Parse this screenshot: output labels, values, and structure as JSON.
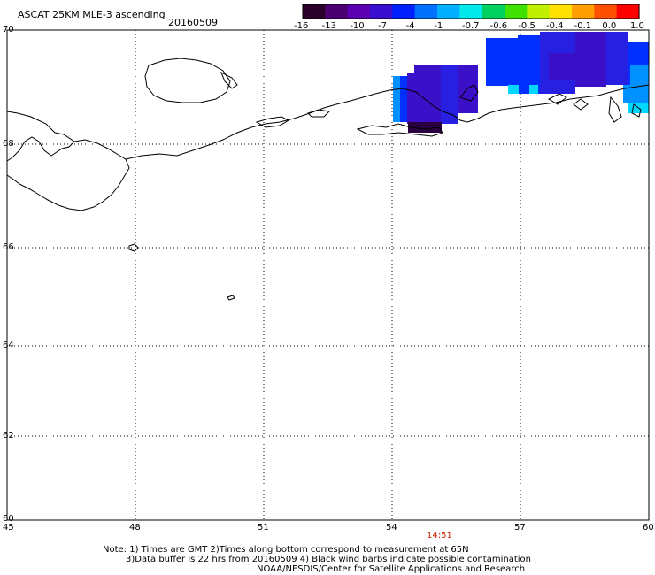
{
  "header": {
    "title": "ASCAT 25KM MLE-3 ascending",
    "date": "20160509"
  },
  "colorbar": {
    "labels": [
      "-16",
      "-13",
      "-10",
      "-7",
      "-4",
      "-1",
      "-0.7",
      "-0.6",
      "-0.5",
      "-0.4",
      "-0.1",
      "0.0",
      "1.0"
    ],
    "colors": [
      "#2a002a",
      "#4a0070",
      "#5a00b0",
      "#3a10d0",
      "#0020ff",
      "#0070ff",
      "#00b0ff",
      "#00e8e8",
      "#00d060",
      "#40e000",
      "#c0f000",
      "#ffe000",
      "#ffa000",
      "#ff5000",
      "#ff0000"
    ]
  },
  "axes": {
    "lat_labels": [
      "70",
      "68",
      "66",
      "64",
      "62",
      "60"
    ],
    "lon_labels": [
      "45",
      "48",
      "51",
      "54",
      "57",
      "60"
    ]
  },
  "overpass_time": "14:51",
  "notes": [
    "Note: 1) Times are GMT 2)Times along bottom correspond to measurement at 65N",
    "3)Data buffer is 22 hrs from 20160509 4) Black wind barbs indicate possible contamination",
    "NOAA/NESDIS/Center for Satellite Applications and Research"
  ],
  "swath_colors": {
    "deep": "#2a0040",
    "purple": "#3a10c8",
    "indigo": "#2820e0",
    "blue": "#0030ff",
    "lightblue": "#0090ff",
    "cyan": "#00d8ff"
  }
}
